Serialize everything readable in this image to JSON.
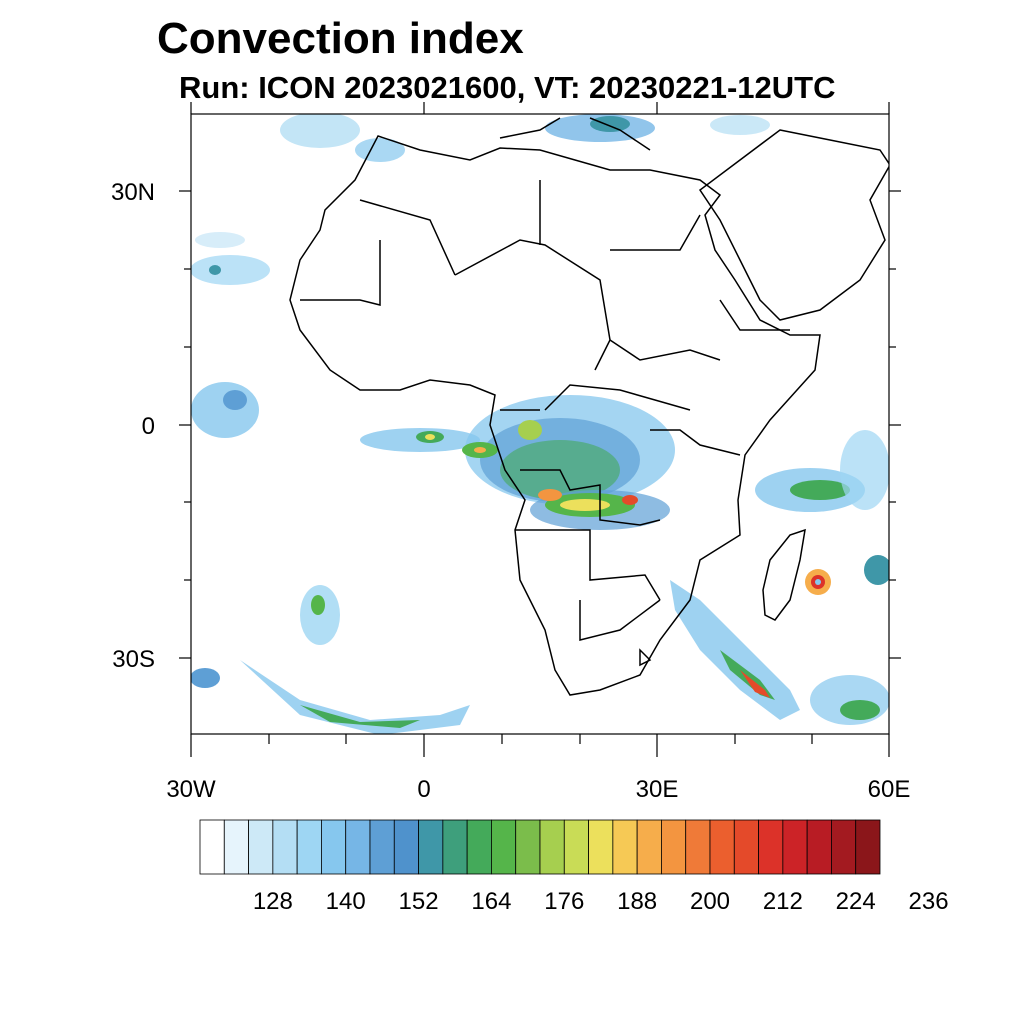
{
  "header": {
    "title": "Convection index",
    "subtitle": "Run: ICON 2023021600,  VT: 20230221-12UTC"
  },
  "axes": {
    "lat_labels": [
      "30N",
      "0",
      "30S"
    ],
    "lon_labels": [
      "30W",
      "0",
      "30E",
      "60E"
    ],
    "lon_range": [
      -30,
      60
    ],
    "lat_range": [
      -40,
      40
    ]
  },
  "colorbar": {
    "tick_labels": [
      "128",
      "140",
      "152",
      "164",
      "176",
      "188",
      "200",
      "212",
      "224",
      "236"
    ],
    "colors": [
      "#ffffff",
      "#e6f4fc",
      "#cde9f7",
      "#b4def4",
      "#9ed6f3",
      "#86c7ee",
      "#76b6e6",
      "#5e9fd5",
      "#4f92cc",
      "#3f97a8",
      "#3e9f7c",
      "#44aa5a",
      "#55b54a",
      "#7bbd4b",
      "#a6cf4f",
      "#c9dc56",
      "#ece05c",
      "#f6c955",
      "#f6ad4b",
      "#f39540",
      "#ef7a38",
      "#eb5f2e",
      "#e44a2a",
      "#dc3229",
      "#cc2327",
      "#b81c24",
      "#a31a20",
      "#8b161a"
    ]
  },
  "colors": {
    "coast": "#000000",
    "frame": "#000000"
  }
}
